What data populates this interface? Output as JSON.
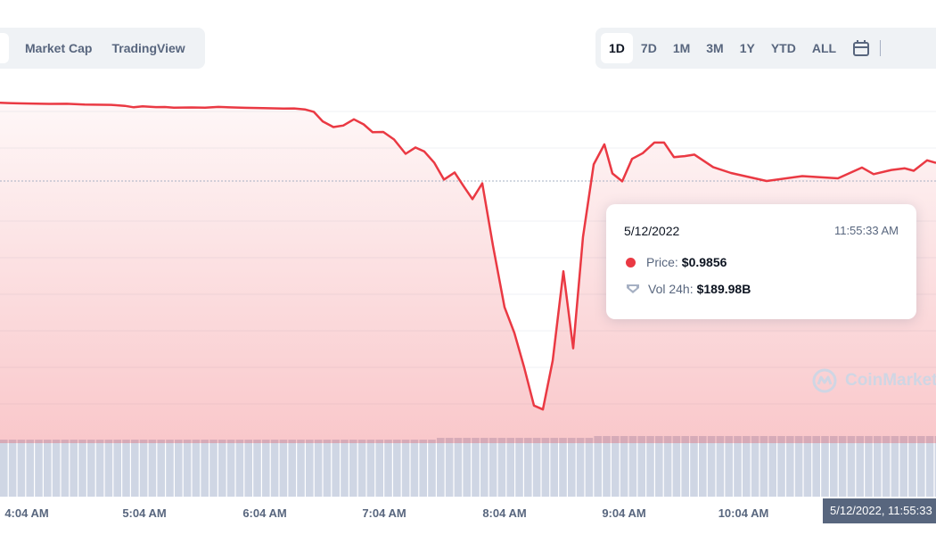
{
  "header": {
    "tabs": [
      {
        "label": "Market Cap"
      },
      {
        "label": "TradingView"
      }
    ],
    "ranges": [
      {
        "label": "1D",
        "active": true
      },
      {
        "label": "7D"
      },
      {
        "label": "1M"
      },
      {
        "label": "3M"
      },
      {
        "label": "1Y"
      },
      {
        "label": "YTD"
      },
      {
        "label": "ALL"
      }
    ]
  },
  "tooltip": {
    "date": "5/12/2022",
    "time": "11:55:33 AM",
    "price_label": "Price:",
    "price_value": "$0.9856",
    "vol_label": "Vol 24h:",
    "vol_value": "$189.98B"
  },
  "watermark": "CoinMarket",
  "crosshair_label": "5/12/2022, 11:55:33",
  "colors": {
    "line": "#ea3943",
    "volume": "#cfd6e4",
    "accent": "#58667e"
  },
  "chart_data": {
    "type": "area",
    "x_ticks": [
      "4:04 AM",
      "5:04 AM",
      "6:04 AM",
      "7:04 AM",
      "8:04 AM",
      "9:04 AM",
      "10:04 AM"
    ],
    "price_series": [
      {
        "t": 0,
        "y": 0.3
      },
      {
        "t": 10,
        "y": 0.6
      },
      {
        "t": 20,
        "y": 0.9
      },
      {
        "t": 40,
        "y": 1.2
      },
      {
        "t": 55,
        "y": 1.5
      },
      {
        "t": 75,
        "y": 1.4
      },
      {
        "t": 95,
        "y": 2.3
      },
      {
        "t": 125,
        "y": 2.6
      },
      {
        "t": 140,
        "y": 3.7
      },
      {
        "t": 150,
        "y": 5.3
      },
      {
        "t": 160,
        "y": 4.3
      },
      {
        "t": 175,
        "y": 5.1
      },
      {
        "t": 185,
        "y": 5.0
      },
      {
        "t": 195,
        "y": 5.7
      },
      {
        "t": 215,
        "y": 5.5
      },
      {
        "t": 230,
        "y": 5.8
      },
      {
        "t": 245,
        "y": 4.9
      },
      {
        "t": 262,
        "y": 5.5
      },
      {
        "t": 275,
        "y": 5.9
      },
      {
        "t": 295,
        "y": 6.2
      },
      {
        "t": 318,
        "y": 6.7
      },
      {
        "t": 330,
        "y": 6.6
      },
      {
        "t": 342,
        "y": 7.7
      },
      {
        "t": 352,
        "y": 10.4
      },
      {
        "t": 362,
        "y": 21.1
      },
      {
        "t": 374,
        "y": 27.5
      },
      {
        "t": 385,
        "y": 25.8
      },
      {
        "t": 397,
        "y": 18.8
      },
      {
        "t": 408,
        "y": 24.5
      },
      {
        "t": 418,
        "y": 33.3
      },
      {
        "t": 430,
        "y": 33.0
      },
      {
        "t": 442,
        "y": 41.4
      },
      {
        "t": 455,
        "y": 57.5
      },
      {
        "t": 466,
        "y": 50.4
      },
      {
        "t": 476,
        "y": 54.9
      },
      {
        "t": 487,
        "y": 67.3
      },
      {
        "t": 498,
        "y": 86.4
      },
      {
        "t": 510,
        "y": 78.4
      },
      {
        "t": 520,
        "y": 93.7
      },
      {
        "t": 530,
        "y": 108.3
      },
      {
        "t": 541,
        "y": 90.6
      },
      {
        "t": 553,
        "y": 160.4
      },
      {
        "t": 566,
        "y": 229.6
      },
      {
        "t": 577,
        "y": 258.3
      },
      {
        "t": 588,
        "y": 297.0
      },
      {
        "t": 599,
        "y": 339.8
      },
      {
        "t": 609,
        "y": 344.2
      },
      {
        "t": 620,
        "y": 289.5
      },
      {
        "t": 632,
        "y": 189.3
      },
      {
        "t": 643,
        "y": 275.6
      },
      {
        "t": 654,
        "y": 150.7
      },
      {
        "t": 666,
        "y": 69.4
      },
      {
        "t": 678,
        "y": 46.9
      },
      {
        "t": 687,
        "y": 79.5
      },
      {
        "t": 698,
        "y": 88.4
      },
      {
        "t": 709,
        "y": 63.2
      },
      {
        "t": 721,
        "y": 56.8
      },
      {
        "t": 734,
        "y": 44.9
      },
      {
        "t": 745,
        "y": 44.9
      },
      {
        "t": 756,
        "y": 61.2
      },
      {
        "t": 768,
        "y": 60.1
      },
      {
        "t": 779,
        "y": 58.4
      },
      {
        "t": 800,
        "y": 72.4
      },
      {
        "t": 820,
        "y": 79.0
      },
      {
        "t": 860,
        "y": 88.0
      },
      {
        "t": 900,
        "y": 82.5
      },
      {
        "t": 940,
        "y": 85.0
      },
      {
        "t": 967,
        "y": 72.9
      },
      {
        "t": 980,
        "y": 80.3
      },
      {
        "t": 1000,
        "y": 75.6
      },
      {
        "t": 1015,
        "y": 73.8
      },
      {
        "t": 1025,
        "y": 76.5
      },
      {
        "t": 1040,
        "y": 64.8
      },
      {
        "t": 1050,
        "y": 67.7
      }
    ],
    "volume_levels": [
      0.94,
      0.97,
      1.0
    ],
    "grid": true
  }
}
